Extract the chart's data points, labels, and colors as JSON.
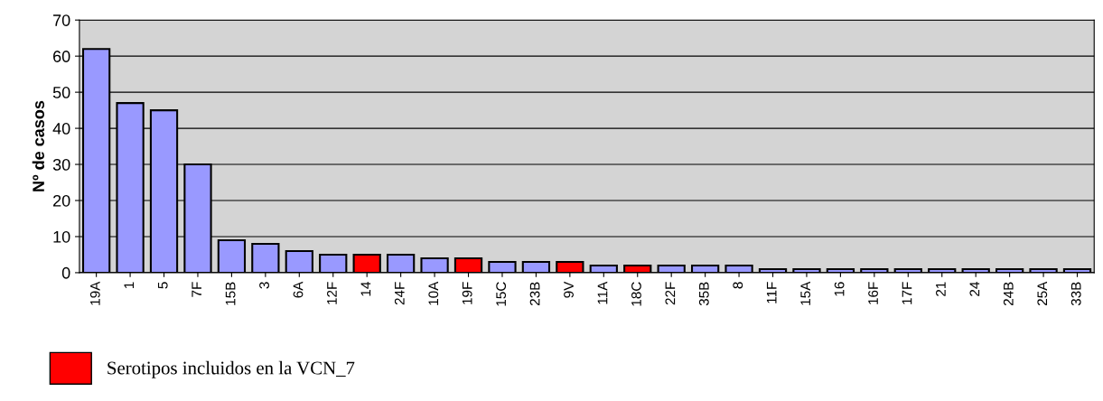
{
  "chart_data": {
    "type": "bar",
    "ylabel": "Nº de casos",
    "categories": [
      "19A",
      "1",
      "5",
      "7F",
      "15B",
      "3",
      "6A",
      "12F",
      "14",
      "24F",
      "10A",
      "19F",
      "15C",
      "23B",
      "9V",
      "11A",
      "18C",
      "22F",
      "35B",
      "8",
      "11F",
      "15A",
      "16",
      "16F",
      "17F",
      "21",
      "24",
      "24B",
      "25A",
      "33B"
    ],
    "series": [
      {
        "color": "#9999ff",
        "values": [
          62,
          47,
          45,
          30,
          9,
          8,
          6,
          5,
          null,
          5,
          4,
          null,
          3,
          3,
          null,
          2,
          null,
          2,
          2,
          2,
          1,
          1,
          1,
          1,
          1,
          1,
          1,
          1,
          1,
          1
        ]
      },
      {
        "name": "Serotipos incluidos en la VCN_7",
        "color": "#ff0000",
        "values": [
          null,
          null,
          null,
          null,
          null,
          null,
          null,
          null,
          5,
          null,
          null,
          4,
          null,
          null,
          3,
          null,
          2,
          null,
          null,
          null,
          null,
          null,
          null,
          null,
          null,
          null,
          null,
          null,
          null,
          null
        ]
      }
    ],
    "ylim": [
      0,
      70
    ],
    "yticks": [
      0,
      10,
      20,
      30,
      40,
      50,
      60,
      70
    ],
    "grid": "y",
    "legend": "bottom left"
  }
}
